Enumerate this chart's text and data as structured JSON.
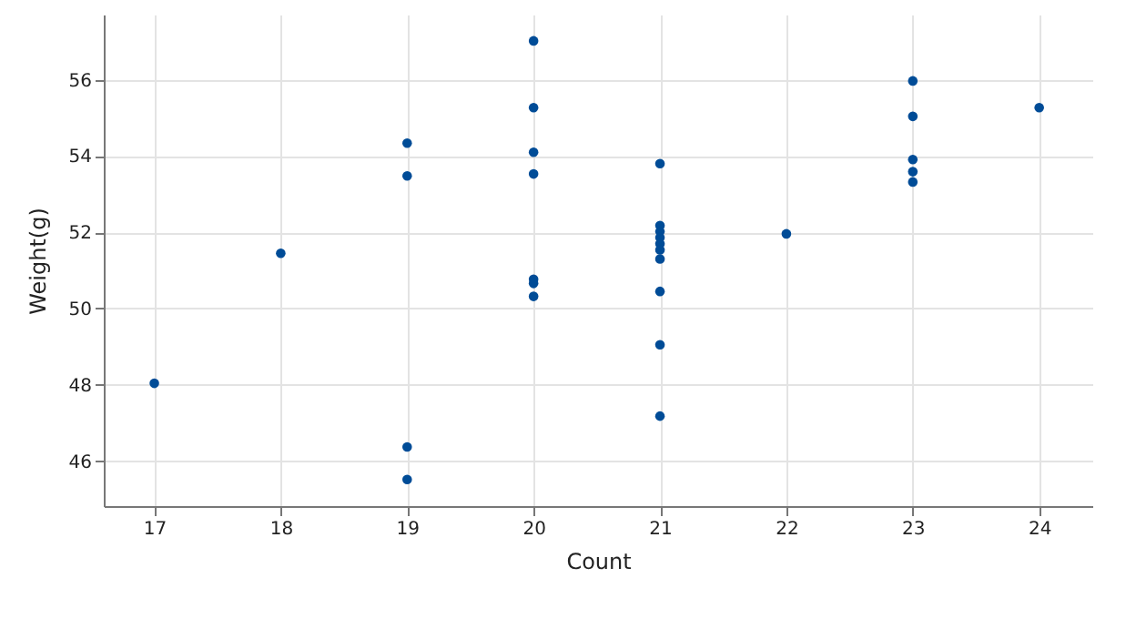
{
  "chart_data": {
    "type": "scatter",
    "xlabel": "Count",
    "ylabel": "Weight(g)",
    "xlim": [
      16.6,
      24.42
    ],
    "xticks": [
      17,
      18,
      19,
      20,
      21,
      22,
      23,
      24
    ],
    "ylim": [
      44.82,
      57.71
    ],
    "yticks": [
      46,
      48,
      50,
      52,
      54,
      56
    ],
    "grid": true,
    "marker": "circle",
    "series": [
      {
        "color": "#004c97",
        "x": [
          17,
          18,
          19,
          19,
          19,
          19,
          20,
          20,
          20,
          20,
          20,
          20,
          20,
          21,
          21,
          21,
          21,
          21,
          21,
          21,
          21,
          21,
          21,
          22,
          23,
          23,
          23,
          23,
          23,
          24
        ],
        "values": [
          48.04,
          51.45,
          54.34,
          53.48,
          46.37,
          45.52,
          57.02,
          55.27,
          54.1,
          53.53,
          50.77,
          50.66,
          50.32,
          53.8,
          52.18,
          52.02,
          51.86,
          51.7,
          51.54,
          51.3,
          50.45,
          49.05,
          47.18,
          51.96,
          55.97,
          55.04,
          53.91,
          53.59,
          53.32,
          55.27
        ]
      }
    ]
  }
}
